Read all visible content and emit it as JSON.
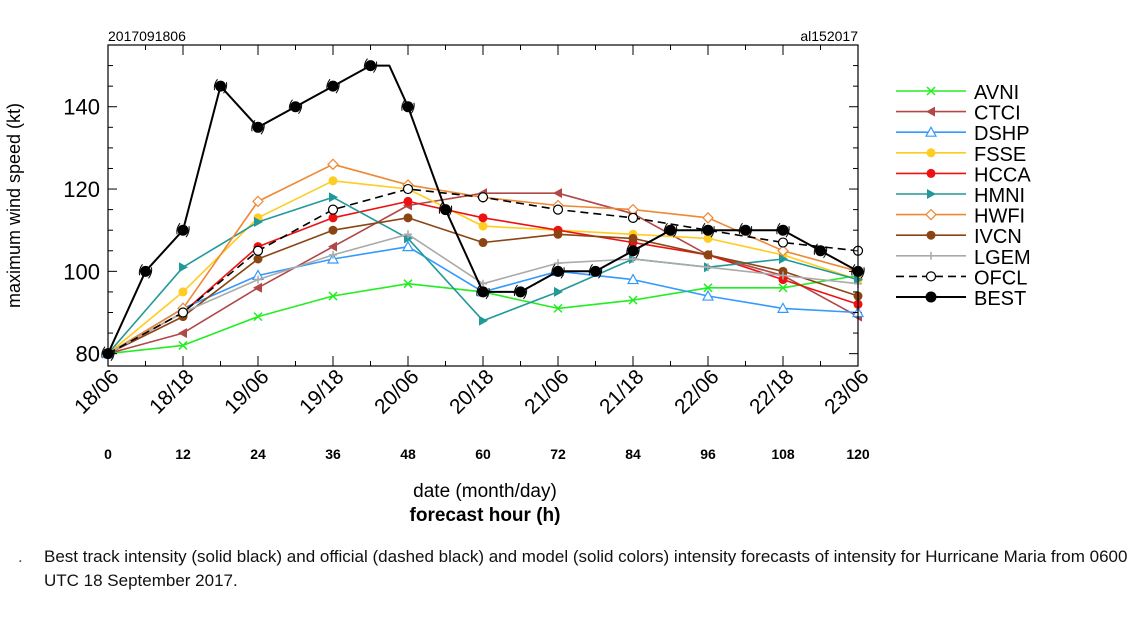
{
  "chart_data": {
    "type": "line",
    "title_left": "2017091806",
    "title_right": "al152017",
    "ylabel": "maximum wind speed (kt)",
    "xlabel": "date (month/day)",
    "xlabel2": "forecast hour (h)",
    "ylim": [
      77,
      155
    ],
    "xlim": [
      0,
      120
    ],
    "yticks": [
      80,
      100,
      120,
      140
    ],
    "xticks": [
      0,
      12,
      24,
      36,
      48,
      60,
      72,
      84,
      96,
      108,
      120
    ],
    "xtick_dates": [
      "18/06",
      "18/18",
      "19/06",
      "19/18",
      "20/06",
      "20/18",
      "21/06",
      "21/18",
      "22/06",
      "22/18",
      "23/06"
    ],
    "xtick_hours": [
      "0",
      "12",
      "24",
      "36",
      "48",
      "60",
      "72",
      "84",
      "96",
      "108",
      "120"
    ],
    "series": [
      {
        "name": "AVNI",
        "color": "#22ee22",
        "marker": "x",
        "dash": false,
        "x": [
          0,
          12,
          24,
          36,
          48,
          60,
          72,
          84,
          96,
          108,
          120
        ],
        "y": [
          80,
          82,
          89,
          94,
          97,
          95,
          91,
          93,
          96,
          96,
          99
        ]
      },
      {
        "name": "CTCI",
        "color": "#b04848",
        "marker": "tri-left",
        "dash": false,
        "x": [
          0,
          12,
          24,
          36,
          48,
          60,
          72,
          84,
          96,
          108,
          120
        ],
        "y": [
          80,
          85,
          96,
          106,
          116,
          119,
          119,
          114,
          104,
          99,
          89
        ]
      },
      {
        "name": "DSHP",
        "color": "#3399ff",
        "marker": "tri-open",
        "dash": false,
        "x": [
          0,
          12,
          24,
          36,
          48,
          60,
          72,
          84,
          96,
          108,
          120
        ],
        "y": [
          80,
          91,
          99,
          103,
          106,
          95,
          100,
          98,
          94,
          91,
          90
        ]
      },
      {
        "name": "FSSE",
        "color": "#ffcc22",
        "marker": "dot",
        "dash": false,
        "x": [
          0,
          12,
          24,
          36,
          48,
          60,
          72,
          84,
          96,
          108,
          120
        ],
        "y": [
          80,
          95,
          113,
          122,
          120,
          111,
          110,
          109,
          108,
          104,
          98
        ]
      },
      {
        "name": "HCCA",
        "color": "#ee1111",
        "marker": "dot",
        "dash": false,
        "x": [
          0,
          12,
          24,
          36,
          48,
          60,
          72,
          84,
          96,
          108,
          120
        ],
        "y": [
          80,
          90,
          106,
          113,
          117,
          113,
          110,
          107,
          104,
          98,
          92
        ]
      },
      {
        "name": "HMNI",
        "color": "#229999",
        "marker": "tri-right",
        "dash": false,
        "x": [
          0,
          12,
          24,
          36,
          48,
          60,
          72,
          84,
          96,
          108,
          120
        ],
        "y": [
          80,
          101,
          112,
          118,
          108,
          88,
          95,
          103,
          101,
          103,
          98
        ]
      },
      {
        "name": "HWFI",
        "color": "#ee8833",
        "marker": "diamond-open",
        "dash": false,
        "x": [
          0,
          12,
          24,
          36,
          48,
          60,
          72,
          84,
          96,
          108,
          120
        ],
        "y": [
          80,
          91,
          117,
          126,
          121,
          118,
          116,
          115,
          113,
          105,
          100
        ]
      },
      {
        "name": "IVCN",
        "color": "#8b4513",
        "marker": "dot",
        "dash": false,
        "x": [
          0,
          12,
          24,
          36,
          48,
          60,
          72,
          84,
          96,
          108,
          120
        ],
        "y": [
          80,
          89,
          103,
          110,
          113,
          107,
          109,
          108,
          104,
          100,
          94
        ]
      },
      {
        "name": "LGEM",
        "color": "#aaaaaa",
        "marker": "plus",
        "dash": false,
        "x": [
          0,
          12,
          24,
          36,
          48,
          60,
          72,
          84,
          96,
          108,
          120
        ],
        "y": [
          80,
          90,
          98,
          104,
          109,
          97,
          102,
          103,
          101,
          99,
          97
        ]
      },
      {
        "name": "OFCL",
        "color": "#000000",
        "marker": "circle-open",
        "dash": true,
        "x": [
          0,
          12,
          24,
          36,
          48,
          60,
          72,
          84,
          96,
          108,
          120
        ],
        "y": [
          80,
          90,
          105,
          115,
          120,
          118,
          115,
          113,
          110,
          107,
          105
        ]
      },
      {
        "name": "BEST",
        "color": "#000000",
        "marker": "dot-big",
        "dash": false,
        "x": [
          0,
          6,
          12,
          18,
          24,
          30,
          36,
          42,
          45,
          48,
          54,
          60,
          66,
          72,
          78,
          84,
          90,
          96,
          102,
          108,
          114,
          120
        ],
        "y": [
          80,
          100,
          110,
          145,
          135,
          140,
          145,
          150,
          150,
          140,
          115,
          95,
          95,
          100,
          100,
          105,
          110,
          110,
          110,
          110,
          105,
          100
        ]
      }
    ]
  },
  "caption": {
    "bullet": ".",
    "text": "Best track intensity (solid black) and official (dashed black) and model (solid colors) intensity forecasts of intensity for Hurricane Maria from 0600 UTC 18 September 2017."
  }
}
